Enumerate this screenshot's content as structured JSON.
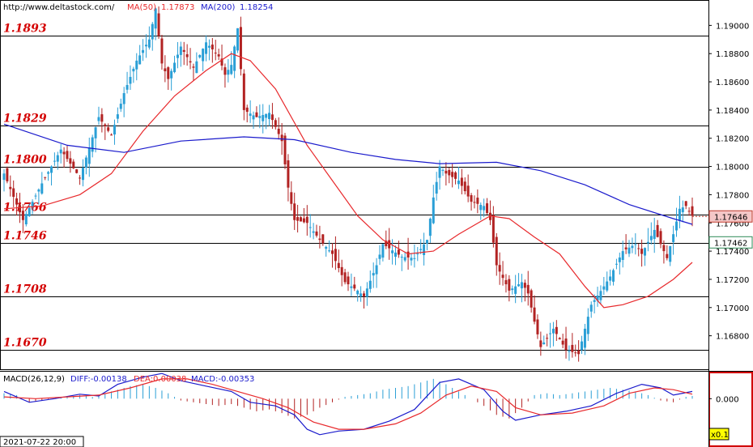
{
  "header": {
    "site": "http://www.deltastock.com/",
    "ma50_label": "MA(50)",
    "ma50_value": "1.17873",
    "ma200_label": "MA(200)",
    "ma200_value": "1.18254"
  },
  "macd_header": {
    "title": "MACD(26,12,9)",
    "diff": "DIFF:-0.00138",
    "dea": "DEA:0.00038",
    "macd": "MACD:-0.00353"
  },
  "colors": {
    "bull": "#2a9fd6",
    "bear": "#b22222",
    "ma50": "#e8292c",
    "ma200": "#1a1acc",
    "level_text": "#d40000",
    "price_box_fill": "#f4c7c7",
    "price_box_border": "#c0392b",
    "support_box_border": "#2e8b57"
  },
  "footer": {
    "date": "2021-07-22 20:00",
    "zoom": "x0.1"
  },
  "chart_data": [
    {
      "type": "candlestick",
      "title": "",
      "ylim": [
        1.1662,
        1.1918
      ],
      "y_ticks": [
        "1.19000",
        "1.18800",
        "1.18600",
        "1.18400",
        "1.18200",
        "1.18000",
        "1.17800",
        "1.17600",
        "1.17400",
        "1.17200",
        "1.17000",
        "1.16800"
      ],
      "y_tick_values": [
        1.19,
        1.188,
        1.186,
        1.184,
        1.182,
        1.18,
        1.178,
        1.176,
        1.174,
        1.172,
        1.17,
        1.168
      ],
      "levels": [
        {
          "value": 1.1893,
          "label": "1.1893"
        },
        {
          "value": 1.1829,
          "label": "1.1829"
        },
        {
          "value": 1.18,
          "label": "1.1800"
        },
        {
          "value": 1.1766,
          "label": "1.1766"
        },
        {
          "value": 1.1746,
          "label": "1.1746"
        },
        {
          "value": 1.1708,
          "label": "1.1708"
        },
        {
          "value": 1.167,
          "label": "1.1670"
        }
      ],
      "current_price": {
        "value": 1.17646,
        "label": "1.17646"
      },
      "marked_level": {
        "value": 1.17462,
        "label": "1.17462"
      },
      "close_path": [
        [
          0,
          1.1795
        ],
        [
          6,
          1.1762
        ],
        [
          12,
          1.1788
        ],
        [
          18,
          1.1812
        ],
        [
          24,
          1.1792
        ],
        [
          30,
          1.1835
        ],
        [
          34,
          1.1822
        ],
        [
          38,
          1.1852
        ],
        [
          42,
          1.1875
        ],
        [
          46,
          1.189
        ],
        [
          48,
          1.1912
        ],
        [
          50,
          1.1873
        ],
        [
          52,
          1.1862
        ],
        [
          56,
          1.1885
        ],
        [
          60,
          1.187
        ],
        [
          64,
          1.1888
        ],
        [
          68,
          1.1878
        ],
        [
          70,
          1.1865
        ],
        [
          72,
          1.1872
        ],
        [
          74,
          1.1898
        ],
        [
          76,
          1.184
        ],
        [
          80,
          1.1835
        ],
        [
          84,
          1.1838
        ],
        [
          88,
          1.1818
        ],
        [
          90,
          1.1785
        ],
        [
          92,
          1.1762
        ],
        [
          96,
          1.176
        ],
        [
          100,
          1.1748
        ],
        [
          104,
          1.1738
        ],
        [
          108,
          1.1718
        ],
        [
          112,
          1.1712
        ],
        [
          114,
          1.1708
        ],
        [
          118,
          1.173
        ],
        [
          120,
          1.1745
        ],
        [
          122,
          1.1742
        ],
        [
          126,
          1.1736
        ],
        [
          130,
          1.1735
        ],
        [
          134,
          1.1748
        ],
        [
          136,
          1.1778
        ],
        [
          138,
          1.18
        ],
        [
          140,
          1.1795
        ],
        [
          144,
          1.179
        ],
        [
          148,
          1.1775
        ],
        [
          152,
          1.1772
        ],
        [
          154,
          1.1762
        ],
        [
          156,
          1.173
        ],
        [
          160,
          1.1712
        ],
        [
          164,
          1.1718
        ],
        [
          166,
          1.171
        ],
        [
          168,
          1.169
        ],
        [
          170,
          1.1672
        ],
        [
          174,
          1.1685
        ],
        [
          178,
          1.167
        ],
        [
          182,
          1.1667
        ],
        [
          184,
          1.1685
        ],
        [
          186,
          1.1702
        ],
        [
          190,
          1.1715
        ],
        [
          192,
          1.1722
        ],
        [
          196,
          1.174
        ],
        [
          200,
          1.1745
        ],
        [
          202,
          1.1738
        ],
        [
          206,
          1.1755
        ],
        [
          208,
          1.1745
        ],
        [
          210,
          1.1735
        ],
        [
          212,
          1.1752
        ],
        [
          214,
          1.177
        ],
        [
          216,
          1.1772
        ],
        [
          218,
          1.1765
        ]
      ],
      "ma50_path": [
        [
          0,
          1.177
        ],
        [
          12,
          1.1772
        ],
        [
          24,
          1.178
        ],
        [
          34,
          1.1795
        ],
        [
          44,
          1.1825
        ],
        [
          54,
          1.185
        ],
        [
          64,
          1.1868
        ],
        [
          72,
          1.188
        ],
        [
          78,
          1.1875
        ],
        [
          86,
          1.1855
        ],
        [
          96,
          1.1815
        ],
        [
          104,
          1.179
        ],
        [
          112,
          1.1765
        ],
        [
          120,
          1.1748
        ],
        [
          128,
          1.1738
        ],
        [
          136,
          1.174
        ],
        [
          144,
          1.1752
        ],
        [
          154,
          1.1765
        ],
        [
          160,
          1.1763
        ],
        [
          168,
          1.175
        ],
        [
          176,
          1.1738
        ],
        [
          184,
          1.1715
        ],
        [
          190,
          1.17
        ],
        [
          196,
          1.1702
        ],
        [
          204,
          1.1708
        ],
        [
          212,
          1.172
        ],
        [
          218,
          1.1732
        ]
      ],
      "ma200_path": [
        [
          0,
          1.183
        ],
        [
          20,
          1.1815
        ],
        [
          38,
          1.181
        ],
        [
          56,
          1.1818
        ],
        [
          76,
          1.1821
        ],
        [
          92,
          1.1819
        ],
        [
          110,
          1.181
        ],
        [
          124,
          1.1805
        ],
        [
          138,
          1.1802
        ],
        [
          156,
          1.1803
        ],
        [
          170,
          1.1797
        ],
        [
          184,
          1.1787
        ],
        [
          198,
          1.1773
        ],
        [
          212,
          1.1763
        ],
        [
          218,
          1.1759
        ]
      ]
    },
    {
      "type": "macd",
      "title": "MACD(26,12,9)",
      "ylim": [
        -0.0042,
        0.003
      ],
      "y_ticks": [
        "0.000"
      ],
      "y_tick_values": [
        0.0
      ],
      "diff": [
        [
          0,
          0.0008
        ],
        [
          8,
          -0.0004
        ],
        [
          16,
          0.0
        ],
        [
          24,
          0.0005
        ],
        [
          30,
          0.0003
        ],
        [
          36,
          0.0016
        ],
        [
          44,
          0.0024
        ],
        [
          50,
          0.0028
        ],
        [
          56,
          0.002
        ],
        [
          64,
          0.0014
        ],
        [
          72,
          0.0008
        ],
        [
          78,
          -0.0004
        ],
        [
          86,
          -0.0008
        ],
        [
          92,
          -0.0018
        ],
        [
          96,
          -0.0034
        ],
        [
          100,
          -0.004
        ],
        [
          106,
          -0.0036
        ],
        [
          114,
          -0.0034
        ],
        [
          122,
          -0.0025
        ],
        [
          130,
          -0.0012
        ],
        [
          138,
          0.0018
        ],
        [
          144,
          0.0022
        ],
        [
          152,
          0.001
        ],
        [
          158,
          -0.0014
        ],
        [
          162,
          -0.0024
        ],
        [
          170,
          -0.0018
        ],
        [
          178,
          -0.0014
        ],
        [
          186,
          -0.0008
        ],
        [
          194,
          0.0006
        ],
        [
          202,
          0.0016
        ],
        [
          208,
          0.0012
        ],
        [
          212,
          0.0004
        ],
        [
          218,
          0.0008
        ]
      ],
      "dea": [
        [
          0,
          0.0002
        ],
        [
          10,
          0.0
        ],
        [
          20,
          0.0002
        ],
        [
          30,
          0.0004
        ],
        [
          40,
          0.0012
        ],
        [
          50,
          0.0022
        ],
        [
          58,
          0.0022
        ],
        [
          66,
          0.0016
        ],
        [
          74,
          0.0008
        ],
        [
          82,
          0.0
        ],
        [
          90,
          -0.001
        ],
        [
          98,
          -0.0026
        ],
        [
          106,
          -0.0034
        ],
        [
          114,
          -0.0034
        ],
        [
          124,
          -0.0028
        ],
        [
          132,
          -0.0016
        ],
        [
          140,
          0.0004
        ],
        [
          148,
          0.0014
        ],
        [
          156,
          0.0008
        ],
        [
          162,
          -0.001
        ],
        [
          170,
          -0.0018
        ],
        [
          180,
          -0.0016
        ],
        [
          190,
          -0.0008
        ],
        [
          198,
          0.0006
        ],
        [
          206,
          0.0012
        ],
        [
          212,
          0.001
        ],
        [
          218,
          0.0005
        ]
      ],
      "hist": [
        [
          0,
          0.0006
        ],
        [
          4,
          0.0004
        ],
        [
          8,
          -0.0004
        ],
        [
          12,
          -0.0002
        ],
        [
          16,
          0.0
        ],
        [
          20,
          0.0002
        ],
        [
          24,
          0.0004
        ],
        [
          28,
          0.0002
        ],
        [
          32,
          0.0006
        ],
        [
          36,
          0.001
        ],
        [
          40,
          0.0014
        ],
        [
          44,
          0.0016
        ],
        [
          48,
          0.0012
        ],
        [
          52,
          0.0006
        ],
        [
          56,
          -0.0002
        ],
        [
          60,
          -0.0004
        ],
        [
          64,
          -0.0006
        ],
        [
          68,
          -0.0008
        ],
        [
          72,
          -0.0006
        ],
        [
          76,
          -0.001
        ],
        [
          80,
          -0.0014
        ],
        [
          84,
          -0.0012
        ],
        [
          88,
          -0.0016
        ],
        [
          92,
          -0.0022
        ],
        [
          96,
          -0.0018
        ],
        [
          100,
          -0.001
        ],
        [
          104,
          -0.0004
        ],
        [
          108,
          0.0002
        ],
        [
          112,
          0.0004
        ],
        [
          116,
          0.0006
        ],
        [
          120,
          0.001
        ],
        [
          124,
          0.0012
        ],
        [
          128,
          0.0014
        ],
        [
          132,
          0.0018
        ],
        [
          136,
          0.0022
        ],
        [
          140,
          0.0016
        ],
        [
          144,
          0.0008
        ],
        [
          148,
          0.0
        ],
        [
          152,
          -0.0008
        ],
        [
          156,
          -0.0018
        ],
        [
          160,
          -0.0022
        ],
        [
          164,
          -0.001
        ],
        [
          168,
          0.0004
        ],
        [
          172,
          0.0006
        ],
        [
          176,
          0.0004
        ],
        [
          180,
          0.0006
        ],
        [
          184,
          0.0008
        ],
        [
          188,
          0.001
        ],
        [
          192,
          0.0012
        ],
        [
          196,
          0.001
        ],
        [
          200,
          0.0008
        ],
        [
          204,
          0.0004
        ],
        [
          208,
          -0.0002
        ],
        [
          212,
          -0.0004
        ],
        [
          216,
          0.0002
        ],
        [
          218,
          0.0003
        ]
      ]
    }
  ]
}
